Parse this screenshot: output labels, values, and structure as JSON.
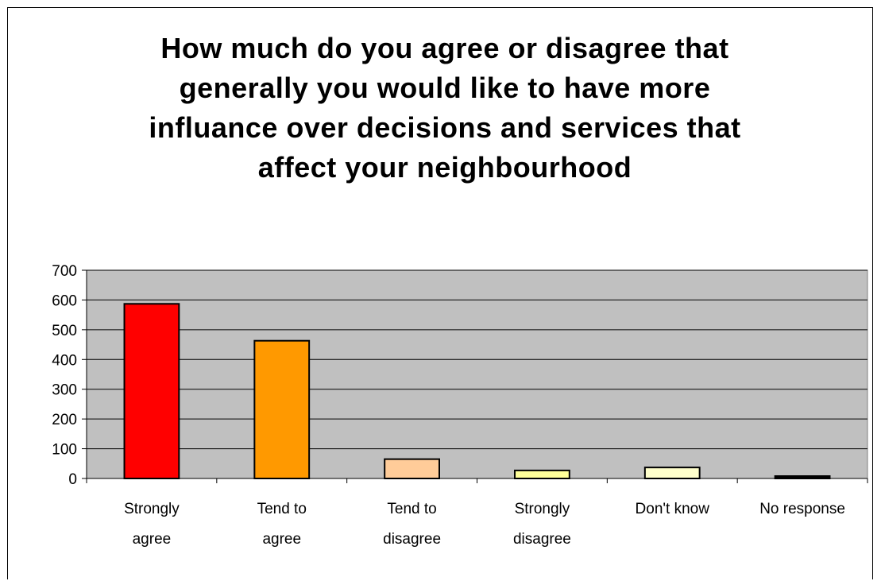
{
  "chart_data": {
    "type": "bar",
    "title_lines": [
      "How much do you agree or disagree that",
      "generally you would like to have more",
      "influance over decisions and services that",
      "affect your neighbourhood"
    ],
    "categories": [
      [
        "Strongly",
        "agree"
      ],
      [
        "Tend to",
        "agree"
      ],
      [
        "Tend to",
        "disagree"
      ],
      [
        "Strongly",
        "disagree"
      ],
      [
        "Don't know"
      ],
      [
        "No response"
      ]
    ],
    "values": [
      587,
      463,
      65,
      27,
      37,
      8
    ],
    "bar_colors": [
      "#ff0000",
      "#ff9900",
      "#ffcc99",
      "#ffff99",
      "#ffffcc",
      "#000000"
    ],
    "ylim": [
      0,
      700
    ],
    "yticks": [
      0,
      100,
      200,
      300,
      400,
      500,
      600,
      700
    ],
    "grid": true,
    "plot_background": "#c0c0c0",
    "legend": "none"
  }
}
